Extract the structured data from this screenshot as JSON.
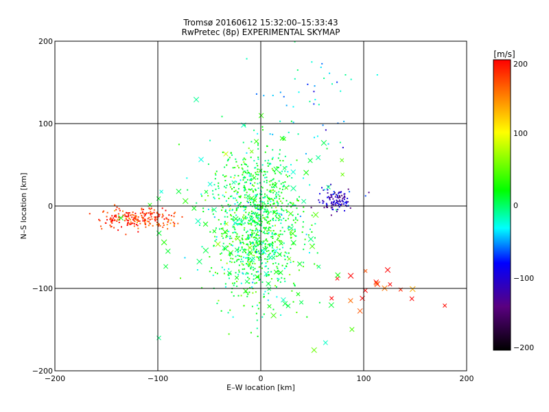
{
  "chart_data": {
    "type": "scatter",
    "title_line1": "Tromsø 20160612 15:32:00–15:33:43",
    "title_line2": "RwPretec (8p) EXPERIMENTAL SKYMAP",
    "xlabel": "E–W location [km]",
    "ylabel": "N–S location [km]",
    "xlim": [
      -200,
      200
    ],
    "ylim": [
      -200,
      200
    ],
    "xticks": [
      "−200",
      "−100",
      "0",
      "100",
      "200"
    ],
    "yticks": [
      "−200",
      "−100",
      "0",
      "100",
      "200"
    ],
    "grid": true,
    "grid_values": [
      -100,
      0,
      100
    ],
    "colorbar": {
      "label": "[m/s]",
      "range": [
        -200,
        200
      ],
      "ticks": [
        "200",
        "100",
        "0",
        "−100",
        "−200"
      ],
      "colors": [
        "#000000",
        "#5a0080",
        "#0000ff",
        "#00ffff",
        "#00ff00",
        "#ffff00",
        "#ff0000"
      ]
    },
    "clusters": [
      {
        "description": "red cluster west",
        "x_center": -120,
        "x_spread": 18,
        "y_center": -15,
        "y_spread": 6,
        "count": 220,
        "value": 180,
        "markers": "dot"
      },
      {
        "description": "green/cyan main cloud",
        "x_center": -5,
        "x_spread": 22,
        "y_center": -20,
        "y_spread": 45,
        "count": 1100,
        "value": 10,
        "markers": "dot"
      },
      {
        "description": "blue cluster east",
        "x_center": 72,
        "x_spread": 10,
        "y_center": 8,
        "y_spread": 7,
        "count": 110,
        "value": -110,
        "markers": "dot"
      },
      {
        "description": "red crosses southeast",
        "x_center": 115,
        "x_spread": 20,
        "y_center": -95,
        "y_spread": 15,
        "count": 18,
        "value": 185,
        "markers": "cross"
      },
      {
        "description": "cyan/green sparse crosses",
        "x_center": -15,
        "x_spread": 40,
        "y_center": -40,
        "y_spread": 70,
        "count": 110,
        "value": 15,
        "markers": "cross"
      },
      {
        "description": "north-east sparse",
        "x_center": 50,
        "x_spread": 25,
        "y_center": 120,
        "y_spread": 40,
        "count": 50,
        "value": -40,
        "markers": "dot"
      }
    ]
  }
}
